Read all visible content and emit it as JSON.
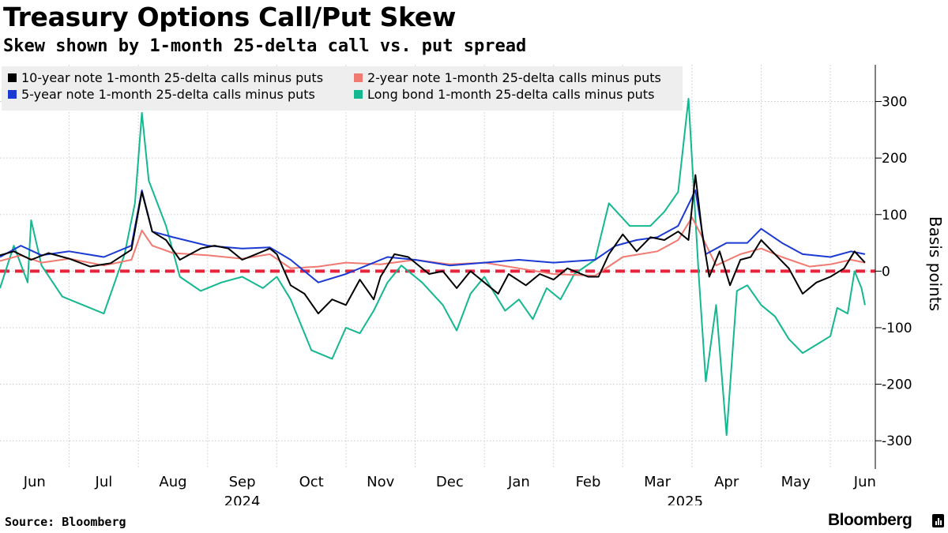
{
  "title": "Treasury Options Call/Put Skew",
  "subtitle": "Skew shown by 1-month 25-delta call vs. put spread",
  "source": "Source: Bloomberg",
  "brand": "Bloomberg",
  "brand_icon": "bloomberg-terminal-icon",
  "chart_data": {
    "type": "line",
    "ylabel": "Basis points",
    "ylim": [
      -350,
      365
    ],
    "yticks": [
      300,
      200,
      100,
      0,
      -100,
      -200,
      -300
    ],
    "ytick_labels": [
      "300",
      "200",
      "100",
      "0",
      "-100",
      "-200",
      "-300"
    ],
    "x_start": 0,
    "x_end": 12.65,
    "x_months": [
      {
        "label": "Jun",
        "x": 0.5
      },
      {
        "label": "Jul",
        "x": 1.5
      },
      {
        "label": "Aug",
        "x": 2.5
      },
      {
        "label": "Sep",
        "x": 3.5
      },
      {
        "label": "Oct",
        "x": 4.5
      },
      {
        "label": "Nov",
        "x": 5.5
      },
      {
        "label": "Dec",
        "x": 6.5
      },
      {
        "label": "Jan",
        "x": 7.5
      },
      {
        "label": "Feb",
        "x": 8.5
      },
      {
        "label": "Mar",
        "x": 9.5
      },
      {
        "label": "Apr",
        "x": 10.5
      },
      {
        "label": "May",
        "x": 11.5
      },
      {
        "label": "Jun",
        "x": 12.5
      }
    ],
    "year_labels": [
      {
        "label": "2024",
        "x": 3.5
      },
      {
        "label": "2025",
        "x": 9.9
      }
    ],
    "zero_line": {
      "value": 0,
      "color": "#e8243c"
    },
    "legend_position": "top-left",
    "series": [
      {
        "name": "10-year note 1-month 25-delta calls minus puts",
        "color": "#000000",
        "points": [
          [
            0,
            28
          ],
          [
            0.2,
            35
          ],
          [
            0.45,
            20
          ],
          [
            0.7,
            32
          ],
          [
            1.0,
            22
          ],
          [
            1.3,
            8
          ],
          [
            1.6,
            14
          ],
          [
            1.9,
            38
          ],
          [
            2.05,
            140
          ],
          [
            2.2,
            70
          ],
          [
            2.4,
            55
          ],
          [
            2.6,
            20
          ],
          [
            2.9,
            40
          ],
          [
            3.1,
            45
          ],
          [
            3.3,
            40
          ],
          [
            3.5,
            20
          ],
          [
            3.7,
            30
          ],
          [
            3.9,
            40
          ],
          [
            4.0,
            30
          ],
          [
            4.2,
            -25
          ],
          [
            4.4,
            -40
          ],
          [
            4.6,
            -75
          ],
          [
            4.8,
            -50
          ],
          [
            5.0,
            -60
          ],
          [
            5.2,
            -15
          ],
          [
            5.4,
            -50
          ],
          [
            5.5,
            -10
          ],
          [
            5.7,
            30
          ],
          [
            5.9,
            25
          ],
          [
            6.2,
            -5
          ],
          [
            6.4,
            0
          ],
          [
            6.6,
            -30
          ],
          [
            6.8,
            0
          ],
          [
            7.0,
            -20
          ],
          [
            7.2,
            -40
          ],
          [
            7.35,
            -5
          ],
          [
            7.6,
            -25
          ],
          [
            7.8,
            -5
          ],
          [
            8.0,
            -15
          ],
          [
            8.2,
            5
          ],
          [
            8.5,
            -10
          ],
          [
            8.65,
            -10
          ],
          [
            8.8,
            30
          ],
          [
            9.0,
            65
          ],
          [
            9.2,
            35
          ],
          [
            9.4,
            60
          ],
          [
            9.6,
            55
          ],
          [
            9.8,
            70
          ],
          [
            9.95,
            55
          ],
          [
            10.05,
            170
          ],
          [
            10.15,
            65
          ],
          [
            10.25,
            -10
          ],
          [
            10.4,
            35
          ],
          [
            10.55,
            -25
          ],
          [
            10.7,
            20
          ],
          [
            10.85,
            25
          ],
          [
            11.0,
            55
          ],
          [
            11.2,
            30
          ],
          [
            11.4,
            5
          ],
          [
            11.6,
            -40
          ],
          [
            11.8,
            -20
          ],
          [
            12.0,
            -10
          ],
          [
            12.2,
            5
          ],
          [
            12.35,
            35
          ],
          [
            12.5,
            15
          ]
        ]
      },
      {
        "name": "2-year note 1-month 25-delta calls minus puts",
        "color": "#f07a72",
        "points": [
          [
            0,
            18
          ],
          [
            0.3,
            28
          ],
          [
            0.6,
            15
          ],
          [
            1.0,
            22
          ],
          [
            1.5,
            10
          ],
          [
            1.9,
            20
          ],
          [
            2.05,
            72
          ],
          [
            2.2,
            45
          ],
          [
            2.5,
            32
          ],
          [
            3.0,
            28
          ],
          [
            3.5,
            22
          ],
          [
            3.9,
            30
          ],
          [
            4.2,
            5
          ],
          [
            4.6,
            8
          ],
          [
            5.0,
            15
          ],
          [
            5.5,
            12
          ],
          [
            6.0,
            20
          ],
          [
            6.5,
            12
          ],
          [
            7.0,
            15
          ],
          [
            7.5,
            5
          ],
          [
            8.0,
            -5
          ],
          [
            8.6,
            -8
          ],
          [
            9.0,
            25
          ],
          [
            9.5,
            35
          ],
          [
            9.8,
            55
          ],
          [
            10.0,
            95
          ],
          [
            10.15,
            60
          ],
          [
            10.35,
            10
          ],
          [
            10.7,
            30
          ],
          [
            11.0,
            40
          ],
          [
            11.3,
            25
          ],
          [
            11.7,
            8
          ],
          [
            12.0,
            12
          ],
          [
            12.3,
            20
          ],
          [
            12.5,
            15
          ]
        ]
      },
      {
        "name": "5-year note 1-month 25-delta calls minus puts",
        "color": "#1b3ad3",
        "points": [
          [
            0,
            25
          ],
          [
            0.3,
            45
          ],
          [
            0.6,
            28
          ],
          [
            1.0,
            35
          ],
          [
            1.5,
            25
          ],
          [
            1.9,
            45
          ],
          [
            2.05,
            143
          ],
          [
            2.2,
            70
          ],
          [
            2.5,
            60
          ],
          [
            3.0,
            45
          ],
          [
            3.5,
            40
          ],
          [
            3.9,
            42
          ],
          [
            4.2,
            20
          ],
          [
            4.6,
            -20
          ],
          [
            5.0,
            -5
          ],
          [
            5.3,
            10
          ],
          [
            5.6,
            25
          ],
          [
            6.0,
            20
          ],
          [
            6.5,
            10
          ],
          [
            7.0,
            15
          ],
          [
            7.5,
            20
          ],
          [
            8.0,
            15
          ],
          [
            8.6,
            20
          ],
          [
            8.9,
            45
          ],
          [
            9.2,
            55
          ],
          [
            9.5,
            60
          ],
          [
            9.8,
            80
          ],
          [
            10.05,
            143
          ],
          [
            10.2,
            30
          ],
          [
            10.5,
            50
          ],
          [
            10.8,
            50
          ],
          [
            11.0,
            75
          ],
          [
            11.3,
            50
          ],
          [
            11.6,
            30
          ],
          [
            12.0,
            25
          ],
          [
            12.3,
            35
          ],
          [
            12.5,
            30
          ]
        ]
      },
      {
        "name": "Long bond 1-month 25-delta calls minus puts",
        "color": "#14b890",
        "points": [
          [
            0,
            -30
          ],
          [
            0.2,
            45
          ],
          [
            0.4,
            -20
          ],
          [
            0.45,
            90
          ],
          [
            0.6,
            10
          ],
          [
            0.9,
            -45
          ],
          [
            1.2,
            -60
          ],
          [
            1.5,
            -75
          ],
          [
            1.8,
            30
          ],
          [
            1.95,
            120
          ],
          [
            2.05,
            280
          ],
          [
            2.15,
            160
          ],
          [
            2.4,
            80
          ],
          [
            2.6,
            -10
          ],
          [
            2.9,
            -35
          ],
          [
            3.2,
            -20
          ],
          [
            3.5,
            -10
          ],
          [
            3.8,
            -30
          ],
          [
            4.0,
            -10
          ],
          [
            4.2,
            -50
          ],
          [
            4.5,
            -140
          ],
          [
            4.8,
            -155
          ],
          [
            5.0,
            -100
          ],
          [
            5.2,
            -110
          ],
          [
            5.4,
            -70
          ],
          [
            5.6,
            -20
          ],
          [
            5.8,
            10
          ],
          [
            6.1,
            -20
          ],
          [
            6.4,
            -60
          ],
          [
            6.6,
            -105
          ],
          [
            6.8,
            -40
          ],
          [
            7.0,
            -10
          ],
          [
            7.3,
            -70
          ],
          [
            7.5,
            -50
          ],
          [
            7.7,
            -85
          ],
          [
            7.9,
            -30
          ],
          [
            8.1,
            -50
          ],
          [
            8.3,
            -5
          ],
          [
            8.6,
            20
          ],
          [
            8.8,
            120
          ],
          [
            9.1,
            80
          ],
          [
            9.4,
            80
          ],
          [
            9.6,
            105
          ],
          [
            9.8,
            140
          ],
          [
            9.95,
            305
          ],
          [
            10.1,
            -10
          ],
          [
            10.2,
            -195
          ],
          [
            10.35,
            -60
          ],
          [
            10.5,
            -290
          ],
          [
            10.65,
            -35
          ],
          [
            10.8,
            -25
          ],
          [
            11.0,
            -60
          ],
          [
            11.2,
            -80
          ],
          [
            11.4,
            -120
          ],
          [
            11.6,
            -145
          ],
          [
            11.8,
            -130
          ],
          [
            12.0,
            -115
          ],
          [
            12.1,
            -65
          ],
          [
            12.25,
            -75
          ],
          [
            12.35,
            0
          ],
          [
            12.45,
            -30
          ],
          [
            12.5,
            -60
          ]
        ]
      }
    ]
  }
}
